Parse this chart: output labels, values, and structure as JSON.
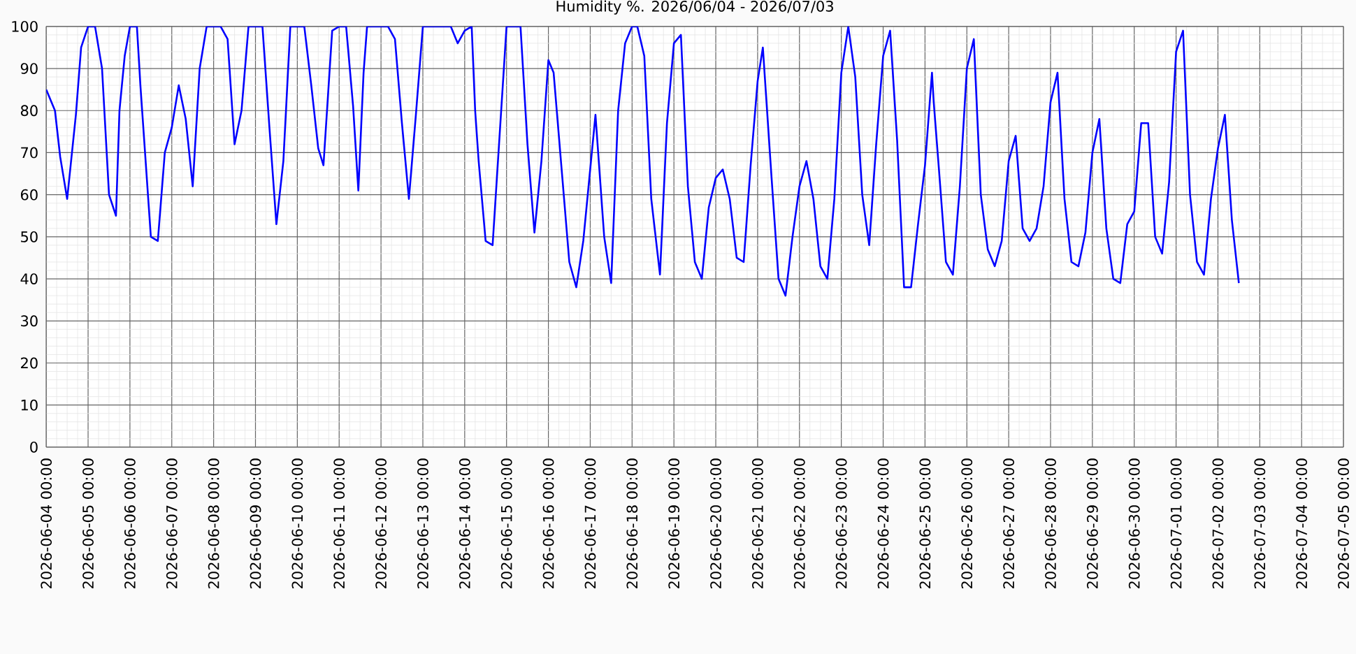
{
  "chart_data": {
    "type": "line",
    "title": "Humidity %. 2026/06/04 - 2026/07/03",
    "x": [
      "2026-06-04T00:00",
      "2026-06-04T03:00",
      "2026-06-04T05:00",
      "2026-06-04T08:00",
      "2026-06-04T12:00",
      "2026-06-04T14:00",
      "2026-06-04T17:00",
      "2026-06-04T20:00",
      "2026-06-05T00:00",
      "2026-06-05T04:00",
      "2026-06-05T08:00",
      "2026-06-05T12:00",
      "2026-06-05T16:00",
      "2026-06-05T18:00",
      "2026-06-05T21:00",
      "2026-06-06T00:00",
      "2026-06-06T04:00",
      "2026-06-06T06:00",
      "2026-06-06T12:00",
      "2026-06-06T16:00",
      "2026-06-06T20:00",
      "2026-06-07T00:00",
      "2026-06-07T04:00",
      "2026-06-07T08:00",
      "2026-06-07T12:00",
      "2026-06-07T16:00",
      "2026-06-07T20:00",
      "2026-06-08T04:00",
      "2026-06-08T08:00",
      "2026-06-08T12:00",
      "2026-06-08T16:00",
      "2026-06-08T20:00",
      "2026-06-09T04:00",
      "2026-06-09T08:00",
      "2026-06-09T12:00",
      "2026-06-09T16:00",
      "2026-06-09T20:00",
      "2026-06-10T04:00",
      "2026-06-10T08:00",
      "2026-06-10T12:00",
      "2026-06-10T15:00",
      "2026-06-10T20:00",
      "2026-06-11T00:00",
      "2026-06-11T04:00",
      "2026-06-11T08:00",
      "2026-06-11T11:00",
      "2026-06-11T14:00",
      "2026-06-11T16:00",
      "2026-06-12T04:00",
      "2026-06-12T08:00",
      "2026-06-12T12:00",
      "2026-06-12T16:00",
      "2026-06-12T20:00",
      "2026-06-13T00:00",
      "2026-06-13T16:00",
      "2026-06-13T20:00",
      "2026-06-14T00:00",
      "2026-06-14T04:00",
      "2026-06-14T06:00",
      "2026-06-14T08:00",
      "2026-06-14T12:00",
      "2026-06-14T16:00",
      "2026-06-15T00:00",
      "2026-06-15T08:00",
      "2026-06-15T12:00",
      "2026-06-15T16:00",
      "2026-06-15T20:00",
      "2026-06-16T00:00",
      "2026-06-16T03:00",
      "2026-06-16T08:00",
      "2026-06-16T12:00",
      "2026-06-16T16:00",
      "2026-06-16T20:00",
      "2026-06-17T03:00",
      "2026-06-17T08:00",
      "2026-06-17T12:00",
      "2026-06-17T16:00",
      "2026-06-17T20:00",
      "2026-06-18T00:00",
      "2026-06-18T03:00",
      "2026-06-18T07:00",
      "2026-06-18T11:00",
      "2026-06-18T16:00",
      "2026-06-18T20:00",
      "2026-06-19T00:00",
      "2026-06-19T04:00",
      "2026-06-19T08:00",
      "2026-06-19T12:00",
      "2026-06-19T16:00",
      "2026-06-19T20:00",
      "2026-06-20T00:00",
      "2026-06-20T04:00",
      "2026-06-20T08:00",
      "2026-06-20T12:00",
      "2026-06-20T16:00",
      "2026-06-20T20:00",
      "2026-06-21T00:00",
      "2026-06-21T03:00",
      "2026-06-21T08:00",
      "2026-06-21T12:00",
      "2026-06-21T16:00",
      "2026-06-21T20:00",
      "2026-06-22T00:00",
      "2026-06-22T04:00",
      "2026-06-22T08:00",
      "2026-06-22T12:00",
      "2026-06-22T16:00",
      "2026-06-22T20:00",
      "2026-06-23T00:00",
      "2026-06-23T04:00",
      "2026-06-23T08:00",
      "2026-06-23T12:00",
      "2026-06-23T16:00",
      "2026-06-23T20:00",
      "2026-06-24T00:00",
      "2026-06-24T04:00",
      "2026-06-24T08:00",
      "2026-06-24T12:00",
      "2026-06-24T16:00",
      "2026-06-24T20:00",
      "2026-06-25T00:00",
      "2026-06-25T04:00",
      "2026-06-25T05:00",
      "2026-06-25T08:00",
      "2026-06-25T12:00",
      "2026-06-25T16:00",
      "2026-06-25T20:00",
      "2026-06-26T00:00",
      "2026-06-26T04:00",
      "2026-06-26T08:00",
      "2026-06-26T12:00",
      "2026-06-26T16:00",
      "2026-06-26T20:00",
      "2026-06-27T00:00",
      "2026-06-27T04:00",
      "2026-06-27T08:00",
      "2026-06-27T12:00",
      "2026-06-27T16:00",
      "2026-06-27T20:00",
      "2026-06-28T00:00",
      "2026-06-28T04:00",
      "2026-06-28T08:00",
      "2026-06-28T12:00",
      "2026-06-28T16:00",
      "2026-06-28T20:00",
      "2026-06-29T00:00",
      "2026-06-29T04:00",
      "2026-06-29T08:00",
      "2026-06-29T12:00",
      "2026-06-29T16:00",
      "2026-06-29T20:00",
      "2026-06-30T00:00",
      "2026-06-30T04:00",
      "2026-06-30T08:00",
      "2026-06-30T12:00",
      "2026-06-30T16:00",
      "2026-06-30T20:00",
      "2026-07-01T00:00",
      "2026-07-01T04:00",
      "2026-07-01T08:00",
      "2026-07-01T12:00",
      "2026-07-01T16:00",
      "2026-07-01T20:00",
      "2026-07-02T00:00",
      "2026-07-02T04:00",
      "2026-07-02T08:00",
      "2026-07-02T12:00"
    ],
    "series": [
      {
        "color": "#0000ff",
        "values": [
          85,
          82,
          80,
          69,
          59,
          67,
          79,
          95,
          100,
          100,
          90,
          60,
          55,
          80,
          93,
          100,
          100,
          86,
          50,
          49,
          70,
          76,
          86,
          78,
          62,
          90,
          100,
          100,
          97,
          72,
          80,
          100,
          100,
          76,
          53,
          68,
          100,
          100,
          86,
          71,
          67,
          99,
          100,
          100,
          81,
          61,
          89,
          100,
          100,
          97,
          77,
          59,
          79,
          100,
          100,
          96,
          99,
          100,
          80,
          68,
          49,
          48,
          100,
          100,
          72,
          51,
          68,
          92,
          89,
          64,
          44,
          38,
          49,
          79,
          50,
          39,
          80,
          96,
          100,
          100,
          93,
          59,
          41,
          77,
          96,
          98,
          62,
          44,
          40,
          57,
          64,
          66,
          59,
          45,
          44,
          67,
          87,
          95,
          64,
          40,
          36,
          50,
          62,
          68,
          59,
          43,
          40,
          59,
          89,
          100,
          88,
          60,
          48,
          72,
          93,
          99,
          73,
          38,
          38,
          53,
          67,
          89,
          82,
          66,
          44,
          41,
          62,
          90,
          97,
          60,
          47,
          43,
          49,
          68,
          74,
          52,
          49,
          52,
          62,
          82,
          89,
          59,
          44,
          43,
          51,
          70,
          78,
          52,
          40,
          39,
          53,
          56,
          77,
          77,
          50,
          46,
          63,
          94,
          99,
          60,
          44,
          41,
          59,
          71,
          79,
          54,
          39
        ]
      }
    ],
    "xlim": [
      "2026-06-04",
      "2026-07-05"
    ],
    "xticks": [
      {
        "value": "2026-06-04",
        "label": "2026-06-04 00:00"
      },
      {
        "value": "2026-06-05",
        "label": "2026-06-05 00:00"
      },
      {
        "value": "2026-06-06",
        "label": "2026-06-06 00:00"
      },
      {
        "value": "2026-06-07",
        "label": "2026-06-07 00:00"
      },
      {
        "value": "2026-06-08",
        "label": "2026-06-08 00:00"
      },
      {
        "value": "2026-06-09",
        "label": "2026-06-09 00:00"
      },
      {
        "value": "2026-06-10",
        "label": "2026-06-10 00:00"
      },
      {
        "value": "2026-06-11",
        "label": "2026-06-11 00:00"
      },
      {
        "value": "2026-06-12",
        "label": "2026-06-12 00:00"
      },
      {
        "value": "2026-06-13",
        "label": "2026-06-13 00:00"
      },
      {
        "value": "2026-06-14",
        "label": "2026-06-14 00:00"
      },
      {
        "value": "2026-06-15",
        "label": "2026-06-15 00:00"
      },
      {
        "value": "2026-06-16",
        "label": "2026-06-16 00:00"
      },
      {
        "value": "2026-06-17",
        "label": "2026-06-17 00:00"
      },
      {
        "value": "2026-06-18",
        "label": "2026-06-18 00:00"
      },
      {
        "value": "2026-06-19",
        "label": "2026-06-19 00:00"
      },
      {
        "value": "2026-06-20",
        "label": "2026-06-20 00:00"
      },
      {
        "value": "2026-06-21",
        "label": "2026-06-21 00:00"
      },
      {
        "value": "2026-06-22",
        "label": "2026-06-22 00:00"
      },
      {
        "value": "2026-06-23",
        "label": "2026-06-23 00:00"
      },
      {
        "value": "2026-06-24",
        "label": "2026-06-24 00:00"
      },
      {
        "value": "2026-06-25",
        "label": "2026-06-25 00:00"
      },
      {
        "value": "2026-06-26",
        "label": "2026-06-26 00:00"
      },
      {
        "value": "2026-06-27",
        "label": "2026-06-27 00:00"
      },
      {
        "value": "2026-06-28",
        "label": "2026-06-28 00:00"
      },
      {
        "value": "2026-06-29",
        "label": "2026-06-29 00:00"
      },
      {
        "value": "2026-06-30",
        "label": "2026-06-30 00:00"
      },
      {
        "value": "2026-07-01",
        "label": "2026-07-01 00:00"
      },
      {
        "value": "2026-07-02",
        "label": "2026-07-02 00:00"
      },
      {
        "value": "2026-07-03",
        "label": "2026-07-03 00:00"
      },
      {
        "value": "2026-07-04",
        "label": "2026-07-04 00:00"
      },
      {
        "value": "2026-07-05",
        "label": "2026-07-05 00:00"
      }
    ],
    "ylim": [
      0,
      100
    ],
    "yticks": [
      0,
      10,
      20,
      30,
      40,
      50,
      60,
      70,
      80,
      90,
      100
    ],
    "grid": true,
    "marker": "none",
    "line_style": "solid"
  }
}
